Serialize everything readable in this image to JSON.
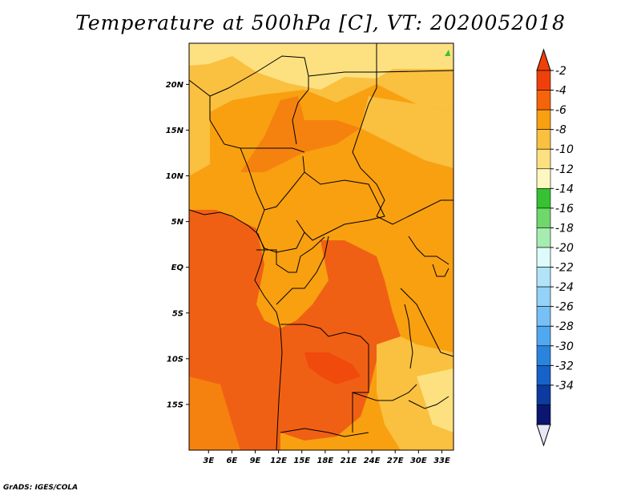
{
  "title": "Temperature at 500hPa [C], VT: 2020052018",
  "footer": "GrADS: IGES/COLA",
  "map": {
    "lat_labels": [
      "20N",
      "15N",
      "10N",
      "5N",
      "EQ",
      "5S",
      "10S",
      "15S"
    ],
    "lat_values": [
      20,
      15,
      10,
      5,
      0,
      -5,
      -10,
      -15
    ],
    "lon_labels": [
      "3E",
      "6E",
      "9E",
      "12E",
      "15E",
      "18E",
      "21E",
      "24E",
      "27E",
      "30E",
      "33E"
    ],
    "lon_values": [
      3,
      6,
      9,
      12,
      15,
      18,
      21,
      24,
      27,
      30,
      33
    ],
    "lat_range": [
      -20,
      24.5
    ],
    "lon_range": [
      0.5,
      34.5
    ]
  },
  "colorbar": {
    "labels": [
      "-2",
      "-4",
      "-6",
      "-8",
      "-10",
      "-12",
      "-14",
      "-16",
      "-18",
      "-20",
      "-22",
      "-24",
      "-26",
      "-28",
      "-30",
      "-32",
      "-34"
    ],
    "colors": [
      "#f0400a",
      "#f5640a",
      "#f8a00f",
      "#fac040",
      "#fde180",
      "#fef8c0",
      "#36c232",
      "#6ed86a",
      "#a6ecb0",
      "#ddfbfb",
      "#b2e4f8",
      "#94d2f8",
      "#76c0f5",
      "#50a8f0",
      "#2a84de",
      "#1662c8",
      "#0c3aa0",
      "#0a1670"
    ],
    "over_color": "#f0400a",
    "under_color": "#e6e6f5"
  },
  "colors": {
    "temp_warmest": "#f06014",
    "temp_warm": "#f5820f",
    "temp_mid": "#f8a010",
    "temp_cool": "#fac040",
    "temp_cold": "#fde180",
    "temp_coldest": "#fef6c4",
    "green_marker": "#36c232",
    "border_line": "#000000"
  }
}
